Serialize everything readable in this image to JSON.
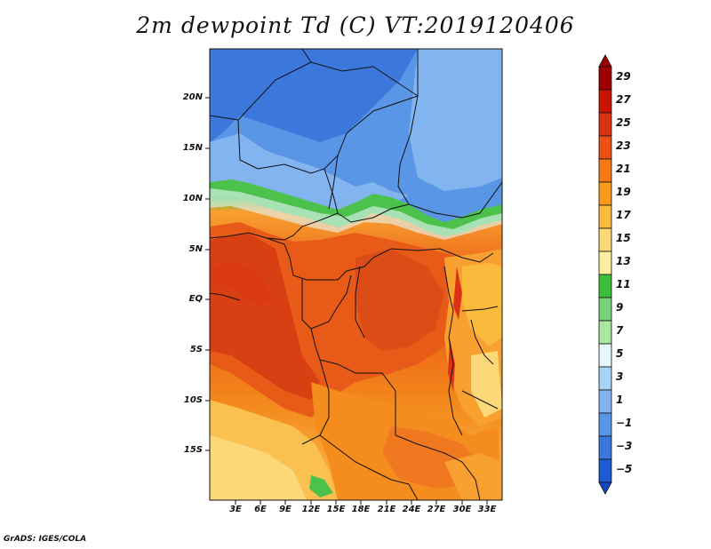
{
  "title": "2m dewpoint Td (C) VT:2019120406",
  "footer": "GrADS: IGES/COLA",
  "map": {
    "lat_labels": [
      "20N",
      "15N",
      "10N",
      "5N",
      "EQ",
      "5S",
      "10S",
      "15S"
    ],
    "lon_labels": [
      "3E",
      "6E",
      "9E",
      "12E",
      "15E",
      "18E",
      "21E",
      "24E",
      "27E",
      "30E",
      "33E"
    ],
    "lat_range": [
      -20,
      24.5
    ],
    "lon_range": [
      0,
      34.5
    ],
    "variable": "2m dewpoint",
    "units": "C",
    "valid_time": "2019120406"
  },
  "colorbar": {
    "labels": [
      "29",
      "27",
      "25",
      "23",
      "21",
      "19",
      "17",
      "15",
      "13",
      "11",
      "9",
      "7",
      "5",
      "3",
      "1",
      "−1",
      "−3",
      "−5"
    ],
    "colors": [
      "#a00000",
      "#c81400",
      "#dc3214",
      "#ec5014",
      "#f47814",
      "#f89a1e",
      "#faba3c",
      "#fcd878",
      "#fcf0a0",
      "#3cbe3c",
      "#78d278",
      "#aae6a0",
      "#e6f6fa",
      "#a8d2f6",
      "#82b4f0",
      "#5a96e6",
      "#3c78dc",
      "#1e5ad2",
      "#1446c8"
    ]
  }
}
